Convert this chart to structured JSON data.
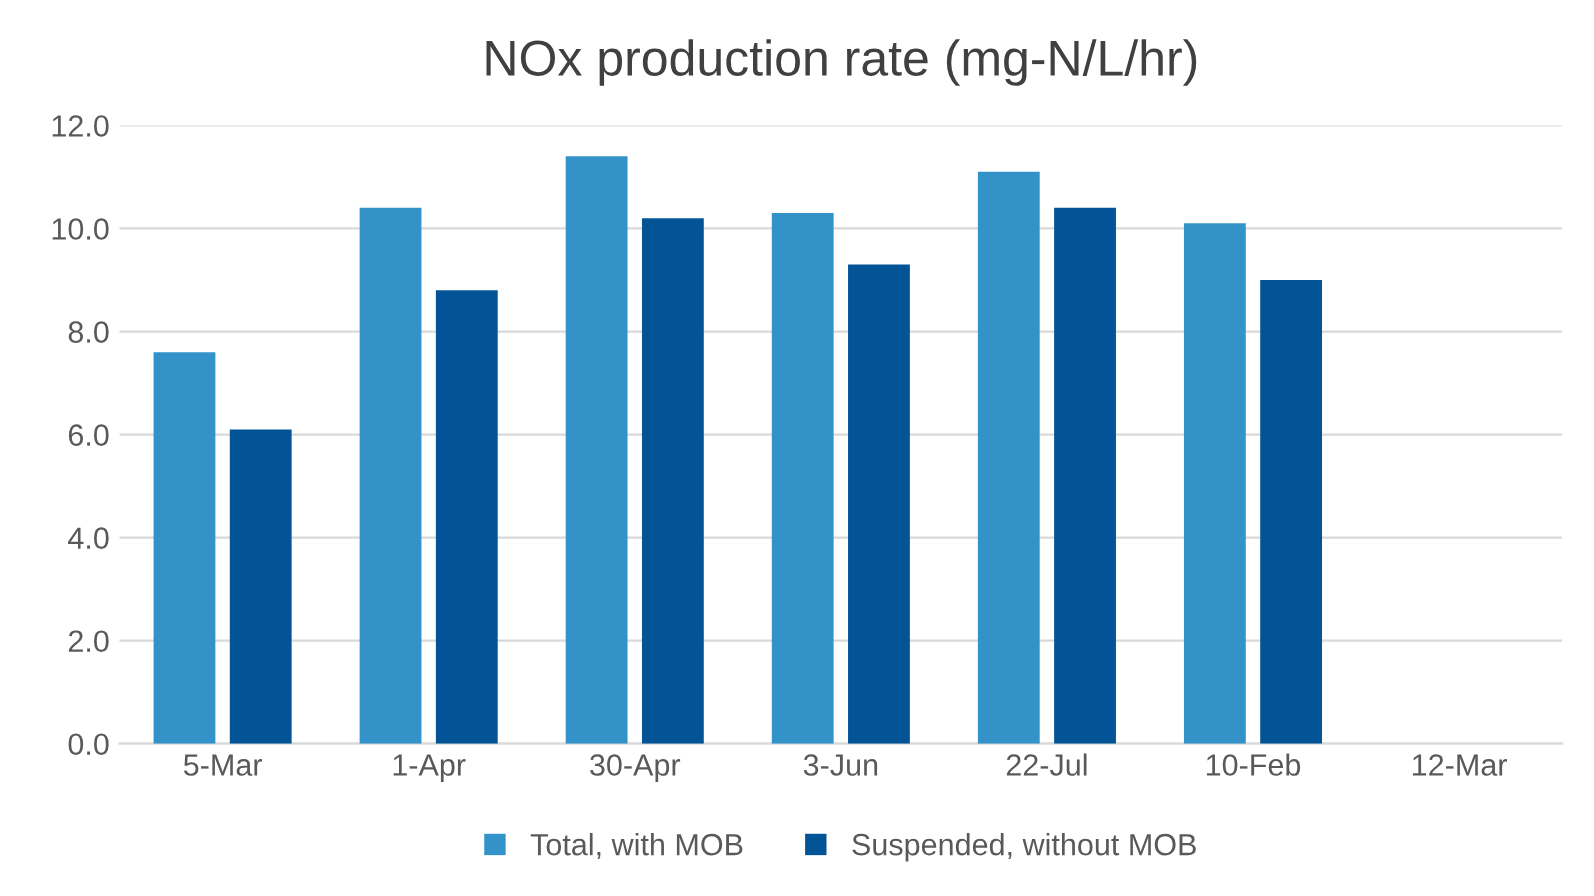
{
  "chart_data": {
    "type": "bar",
    "title": "NOx production rate (mg-N/L/hr)",
    "categories": [
      "5-Mar",
      "1-Apr",
      "30-Apr",
      "3-Jun",
      "22-Jul",
      "10-Feb",
      "12-Mar"
    ],
    "series": [
      {
        "name": "Total, with MOB",
        "color": "#3393c8",
        "values": [
          7.6,
          10.4,
          11.4,
          10.3,
          11.1,
          10.1,
          null
        ]
      },
      {
        "name": "Suspended, without MOB",
        "color": "#035496",
        "values": [
          6.1,
          8.8,
          10.2,
          9.3,
          10.4,
          9.0,
          null
        ]
      }
    ],
    "ylim": [
      0,
      12
    ],
    "yticks": [
      {
        "value": 0,
        "label": "0.0"
      },
      {
        "value": 2,
        "label": "2.0"
      },
      {
        "value": 4,
        "label": "4.0"
      },
      {
        "value": 6,
        "label": "6.0"
      },
      {
        "value": 8,
        "label": "8.0"
      },
      {
        "value": 10,
        "label": "10.0"
      },
      {
        "value": 12,
        "label": "12.0"
      }
    ],
    "grid": "y",
    "legend": "bottom"
  }
}
